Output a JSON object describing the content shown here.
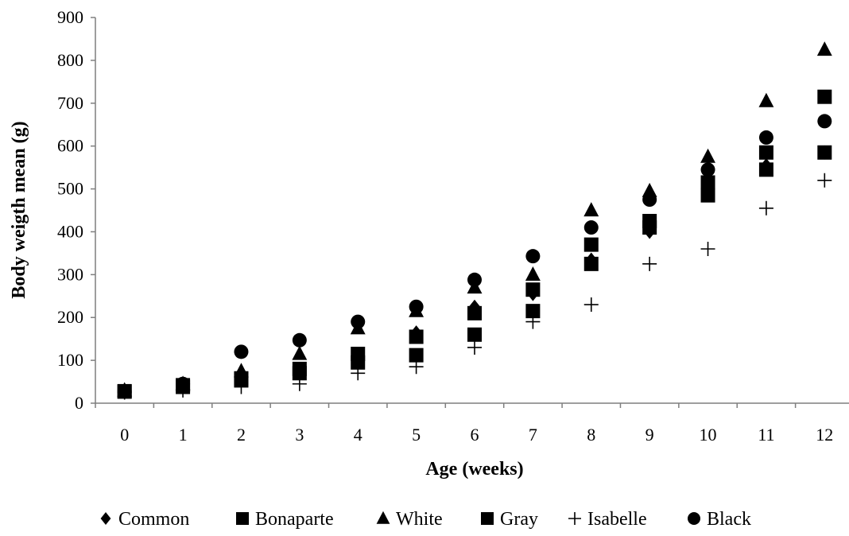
{
  "chart_data": {
    "type": "scatter",
    "title": "",
    "xlabel": "Age (weeks)",
    "ylabel": "Body weigth mean (g)",
    "xlim": [
      -0.5,
      12.5
    ],
    "ylim": [
      0,
      900
    ],
    "x_ticks": [
      "0",
      "1",
      "2",
      "3",
      "4",
      "5",
      "6",
      "7",
      "8",
      "9",
      "10",
      "11",
      "12"
    ],
    "y_ticks": [
      "0",
      "100",
      "200",
      "300",
      "400",
      "500",
      "600",
      "700",
      "800",
      "900"
    ],
    "grid": false,
    "legend_position": "bottom",
    "series": [
      {
        "name": "Common",
        "marker": "diamond",
        "x": [
          0,
          1,
          2,
          3,
          4,
          5,
          6,
          7,
          8,
          9,
          10,
          11,
          12
        ],
        "y": [
          28,
          40,
          55,
          80,
          110,
          165,
          225,
          255,
          335,
          400,
          495,
          555,
          585
        ]
      },
      {
        "name": "Bonaparte",
        "marker": "square",
        "x": [
          0,
          1,
          2,
          3,
          4,
          5,
          6,
          7,
          8,
          9,
          10,
          11,
          12
        ],
        "y": [
          28,
          42,
          58,
          80,
          115,
          155,
          210,
          265,
          370,
          425,
          515,
          585,
          715
        ]
      },
      {
        "name": "White",
        "marker": "triangle",
        "x": [
          0,
          1,
          2,
          3,
          4,
          5,
          6,
          7,
          8,
          9,
          10,
          11,
          12
        ],
        "y": [
          30,
          45,
          75,
          115,
          175,
          215,
          270,
          300,
          450,
          495,
          575,
          705,
          825
        ]
      },
      {
        "name": "Gray",
        "marker": "square",
        "x": [
          0,
          1,
          2,
          3,
          4,
          5,
          6,
          7,
          8,
          9,
          10,
          11,
          12
        ],
        "y": [
          27,
          38,
          55,
          70,
          95,
          112,
          160,
          215,
          325,
          410,
          485,
          545,
          585
        ]
      },
      {
        "name": "Isabelle",
        "marker": "plus",
        "x": [
          0,
          1,
          2,
          3,
          4,
          5,
          6,
          7,
          8,
          9,
          10,
          11,
          12
        ],
        "y": [
          25,
          30,
          38,
          45,
          70,
          85,
          130,
          190,
          230,
          325,
          360,
          455,
          520
        ]
      },
      {
        "name": "Black",
        "marker": "circle",
        "x": [
          0,
          1,
          2,
          3,
          4,
          5,
          6,
          7,
          8,
          9,
          10,
          11,
          12
        ],
        "y": [
          28,
          45,
          120,
          147,
          190,
          225,
          288,
          343,
          410,
          475,
          545,
          620,
          658
        ]
      }
    ]
  }
}
